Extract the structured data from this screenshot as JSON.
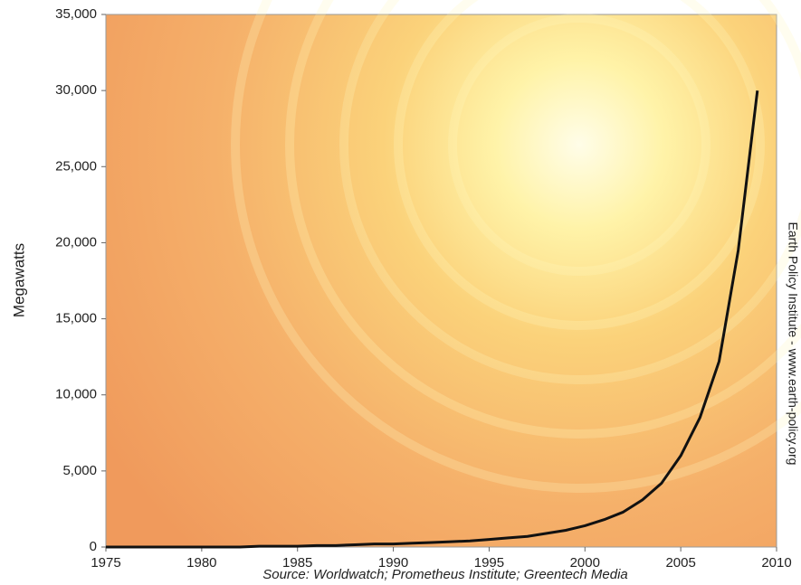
{
  "chart_data": {
    "type": "line",
    "y_label": "Megawatts",
    "source": "Source: Worldwatch; Prometheus Institute; Greentech Media",
    "side_note": "Earth Policy Institute - www.earth-policy.org",
    "x": [
      1975,
      1976,
      1977,
      1978,
      1979,
      1980,
      1981,
      1982,
      1983,
      1984,
      1985,
      1986,
      1987,
      1988,
      1989,
      1990,
      1991,
      1992,
      1993,
      1994,
      1995,
      1996,
      1997,
      1998,
      1999,
      2000,
      2001,
      2002,
      2003,
      2004,
      2005,
      2006,
      2007,
      2008,
      2009
    ],
    "values": [
      0,
      0,
      0,
      0,
      0,
      0,
      0,
      0,
      50,
      50,
      50,
      100,
      100,
      150,
      200,
      200,
      250,
      300,
      350,
      400,
      500,
      600,
      700,
      900,
      1100,
      1400,
      1800,
      2300,
      3100,
      4200,
      6000,
      8500,
      12200,
      19500,
      30000
    ],
    "color": "#111111",
    "xlim": [
      1975,
      2010
    ],
    "xticks": [
      1975,
      1980,
      1985,
      1990,
      1995,
      2000,
      2005,
      2010
    ],
    "ylim": [
      0,
      35000
    ],
    "yticks": [
      0,
      {
        "value": 5000,
        "label": "5,000"
      },
      {
        "value": 10000,
        "label": "10,000"
      },
      {
        "value": 15000,
        "label": "15,000"
      },
      {
        "value": 20000,
        "label": "20,000"
      },
      {
        "value": 25000,
        "label": "25,000"
      },
      {
        "value": 30000,
        "label": "30,000"
      },
      {
        "value": 35000,
        "label": "35,000"
      }
    ]
  }
}
